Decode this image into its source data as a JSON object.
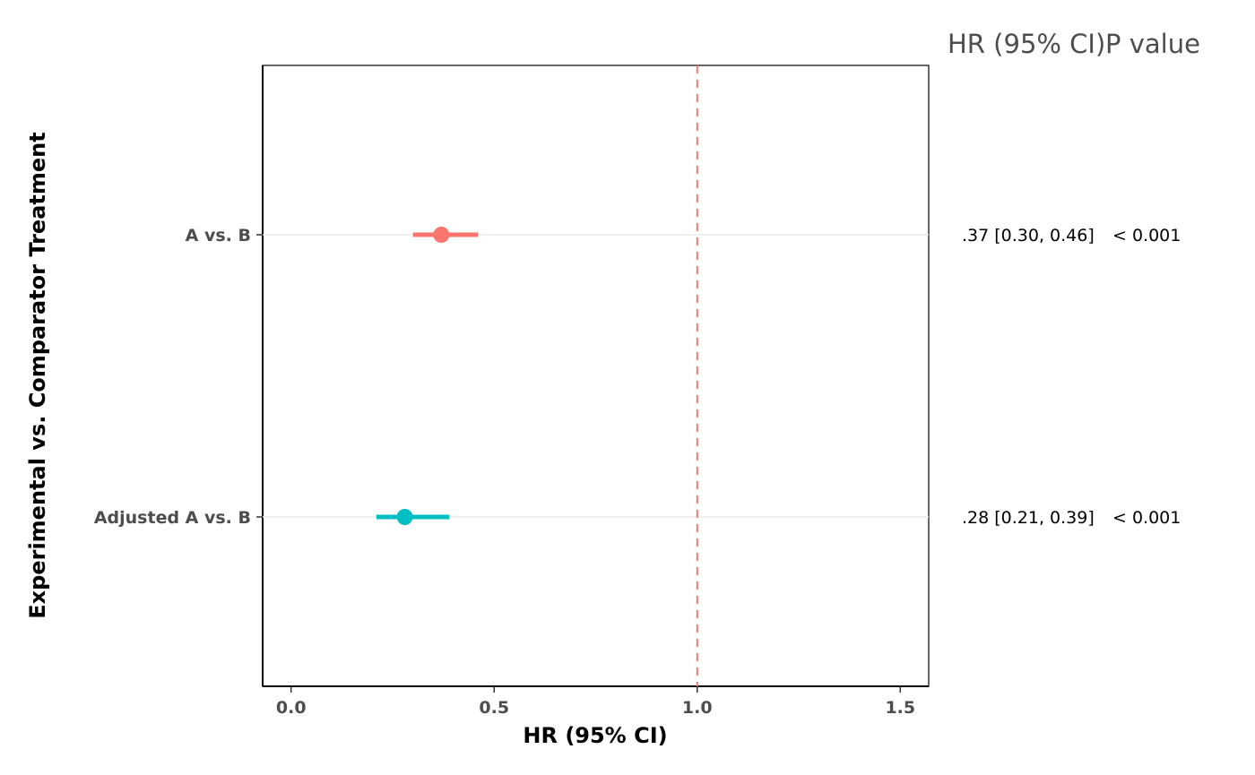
{
  "chart_data": {
    "type": "forest",
    "xlabel": "HR (95% CI)",
    "ylabel": "Experimental vs. Comparator Treatment",
    "xlim": [
      -0.07,
      1.57
    ],
    "xticks": [
      0.0,
      0.5,
      1.0,
      1.5
    ],
    "xtick_labels": [
      "0.0",
      "0.5",
      "1.0",
      "1.5"
    ],
    "reference_line": 1.0,
    "grid": false,
    "column_headers": [
      "HR (95% CI)",
      "P value"
    ],
    "rows": [
      {
        "label": "A vs. B",
        "estimate": 0.37,
        "lower": 0.3,
        "upper": 0.46,
        "hr_text": ".37 [0.30, 0.46]",
        "p_text": "< 0.001",
        "color": "#F8766D"
      },
      {
        "label": "Adjusted A vs. B",
        "estimate": 0.28,
        "lower": 0.21,
        "upper": 0.39,
        "hr_text": ".28 [0.21, 0.39]",
        "p_text": "< 0.001",
        "color": "#00BFC4"
      }
    ]
  },
  "colors": {
    "reference_line": "#F8766D",
    "axis": "#000000",
    "tick_label": "#4d4d4d"
  }
}
